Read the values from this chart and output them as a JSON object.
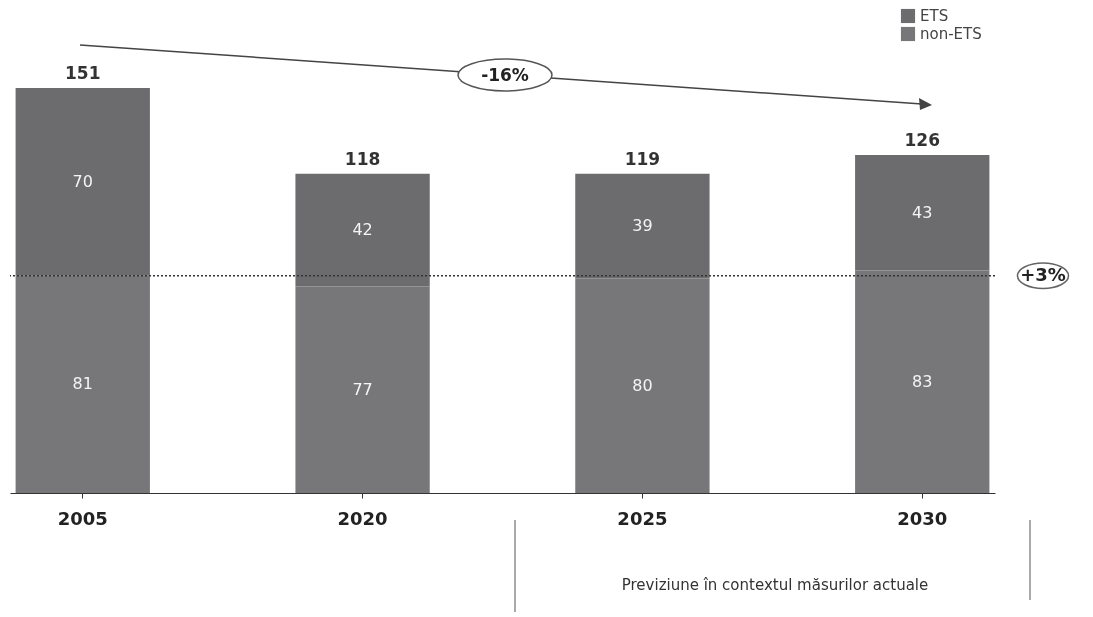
{
  "chart_data": {
    "type": "bar",
    "stacked": true,
    "data_labels": true,
    "legend": "top right",
    "grid": false,
    "categories": [
      "2005",
      "2020",
      "2025",
      "2030"
    ],
    "series": [
      {
        "name": "non-ETS",
        "color": "#777779",
        "values": [
          81,
          77,
          80,
          83
        ]
      },
      {
        "name": "ETS",
        "color": "#6c6c6e",
        "values": [
          70,
          42,
          39,
          43
        ]
      }
    ],
    "totals": [
      "151",
      "118",
      "119",
      "126"
    ],
    "ref_lines": [
      {
        "axis": "y",
        "value": 81,
        "line_style": "dotted",
        "color": "#333333"
      }
    ],
    "annotations": [
      "-16%",
      "Previziune în contextul măsurilor actuale",
      "+3%"
    ]
  }
}
